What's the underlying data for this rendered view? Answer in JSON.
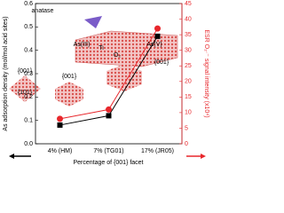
{
  "chart_data": {
    "type": "line",
    "categories": [
      "4% (HM)",
      "7% (TG01)",
      "17% (JR05)"
    ],
    "xlabel": "Percentage of {001} facet",
    "ylabel": "As adsorption density (mol/mol acid sites)",
    "y2label": "ESR O₂·⁻ signal intensity (x10⁴)",
    "ylim": [
      0,
      0.6
    ],
    "yticks": [
      {
        "value": 0,
        "label": "0.0"
      },
      0.1,
      0.2,
      0.3,
      0.4,
      0.5,
      0.6
    ],
    "y2lim": [
      0,
      45
    ],
    "y2ticks": [
      0,
      5,
      10,
      15,
      20,
      25,
      30,
      35,
      40,
      45
    ],
    "series": [
      {
        "color": "#000000",
        "values": [
          0.08,
          0.12,
          0.46
        ]
      },
      {
        "color": "#e8272c",
        "axis": "y2",
        "values": [
          8,
          11,
          37
        ]
      }
    ],
    "annotations": [
      "anatase",
      "As(III)",
      "Ti",
      "O₂",
      "As(V)",
      "{001}",
      "{001}",
      "{101}",
      "{001}"
    ]
  }
}
